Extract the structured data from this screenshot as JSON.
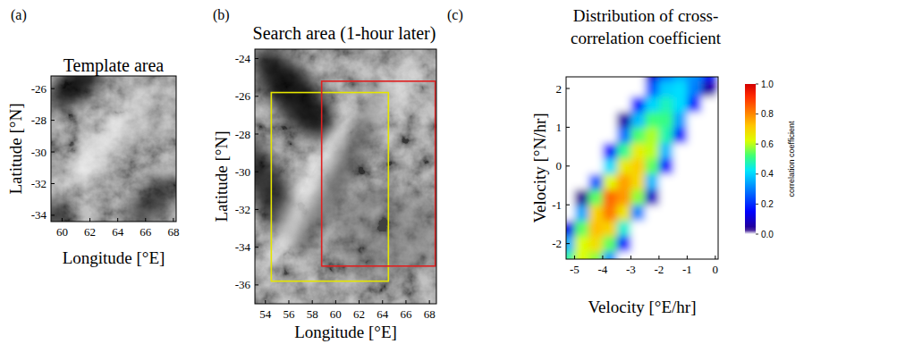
{
  "chart_data": [
    {
      "type": "image",
      "panel_label": "(a)",
      "title": "Template area",
      "x_label": "Longitude [°E]",
      "y_label": "Latitude [°N]",
      "xlim": [
        59.2,
        68.2
      ],
      "ylim": [
        -34.4,
        -25.2
      ],
      "xticks": [
        60,
        62,
        64,
        66,
        68
      ],
      "yticks": [
        -34,
        -32,
        -30,
        -28,
        -26
      ]
    },
    {
      "type": "image",
      "panel_label": "(b)",
      "title": "Search area (1-hour later)",
      "x_label": "Longitude [°E]",
      "y_label": "Latitude [°N]",
      "xlim": [
        53.1,
        68.6
      ],
      "ylim": [
        -37,
        -23.5
      ],
      "xticks": [
        54,
        56,
        58,
        60,
        62,
        64,
        66,
        68
      ],
      "yticks": [
        -36,
        -34,
        -32,
        -30,
        -28,
        -26,
        -24
      ],
      "rectangles": [
        {
          "color": "#e6e600",
          "x": [
            54.5,
            64.5
          ],
          "y": [
            -35.8,
            -25.8
          ]
        },
        {
          "color": "#e02020",
          "x": [
            58.8,
            68.5
          ],
          "y": [
            -35,
            -25.2
          ]
        }
      ]
    },
    {
      "type": "heatmap",
      "panel_label": "(c)",
      "title": [
        "Distribution of cross-",
        "correlation coefficient"
      ],
      "x_label": "Velocity [°E/hr]",
      "y_label": "Velocity [°N/hr]",
      "xlim": [
        -5.3,
        0.1
      ],
      "ylim": [
        -2.4,
        2.3
      ],
      "xticks": [
        -5,
        -4,
        -3,
        -2,
        -1,
        0
      ],
      "yticks": [
        -2,
        -1,
        0,
        1,
        2
      ],
      "x": [
        -5.25,
        -4.75,
        -4.25,
        -3.75,
        -3.25,
        -2.75,
        -2.25,
        -1.75,
        -1.25,
        -0.75,
        -0.25
      ],
      "y": [
        -2.4,
        -2.0,
        -1.6,
        -1.2,
        -0.8,
        -0.4,
        0,
        0.4,
        0.8,
        1.2,
        1.6,
        2.0,
        2.4
      ],
      "cells": [
        [
          0.49,
          0.62,
          0.57,
          0.33,
          0,
          0,
          0,
          0,
          0,
          0,
          0
        ],
        [
          0.36,
          0.62,
          0.68,
          0.54,
          0.19,
          0,
          0,
          0,
          0,
          0,
          0
        ],
        [
          0.13,
          0.54,
          0.73,
          0.7,
          0.45,
          0,
          0,
          0,
          0,
          0,
          0
        ],
        [
          0,
          0.35,
          0.7,
          0.82,
          0.67,
          0.31,
          0,
          0,
          0,
          0,
          0
        ],
        [
          0,
          0.04,
          0.54,
          0.84,
          0.78,
          0.57,
          0.09,
          0,
          0,
          0,
          0
        ],
        [
          0,
          0,
          0.26,
          0.63,
          0.77,
          0.69,
          0.37,
          0,
          0,
          0,
          0
        ],
        [
          0,
          0,
          0,
          0.41,
          0.66,
          0.71,
          0.54,
          0.16,
          0,
          0,
          0
        ],
        [
          0,
          0,
          0,
          0.15,
          0.5,
          0.65,
          0.6,
          0.37,
          0,
          0,
          0
        ],
        [
          0,
          0,
          0,
          0,
          0.29,
          0.53,
          0.59,
          0.48,
          0.19,
          0,
          0
        ],
        [
          0,
          0,
          0,
          0,
          0.06,
          0.37,
          0.52,
          0.51,
          0.34,
          0,
          0
        ],
        [
          0,
          0,
          0,
          0,
          0,
          0.19,
          0.4,
          0.47,
          0.41,
          0.2,
          0
        ],
        [
          0,
          0,
          0,
          0,
          0,
          0,
          0.26,
          0.39,
          0.41,
          0.3,
          0.06
        ],
        [
          0,
          0,
          0,
          0,
          0,
          0,
          0.1,
          0.28,
          0.35,
          0.32,
          0.18
        ]
      ],
      "colorbar": {
        "label": "correlation coefficient",
        "range": [
          0,
          1
        ],
        "ticks": [
          {
            "value": 0,
            "label": "0.0"
          },
          0.2,
          0.4,
          0.6,
          0.8,
          {
            "value": 1,
            "label": "1.0"
          }
        ]
      }
    }
  ]
}
